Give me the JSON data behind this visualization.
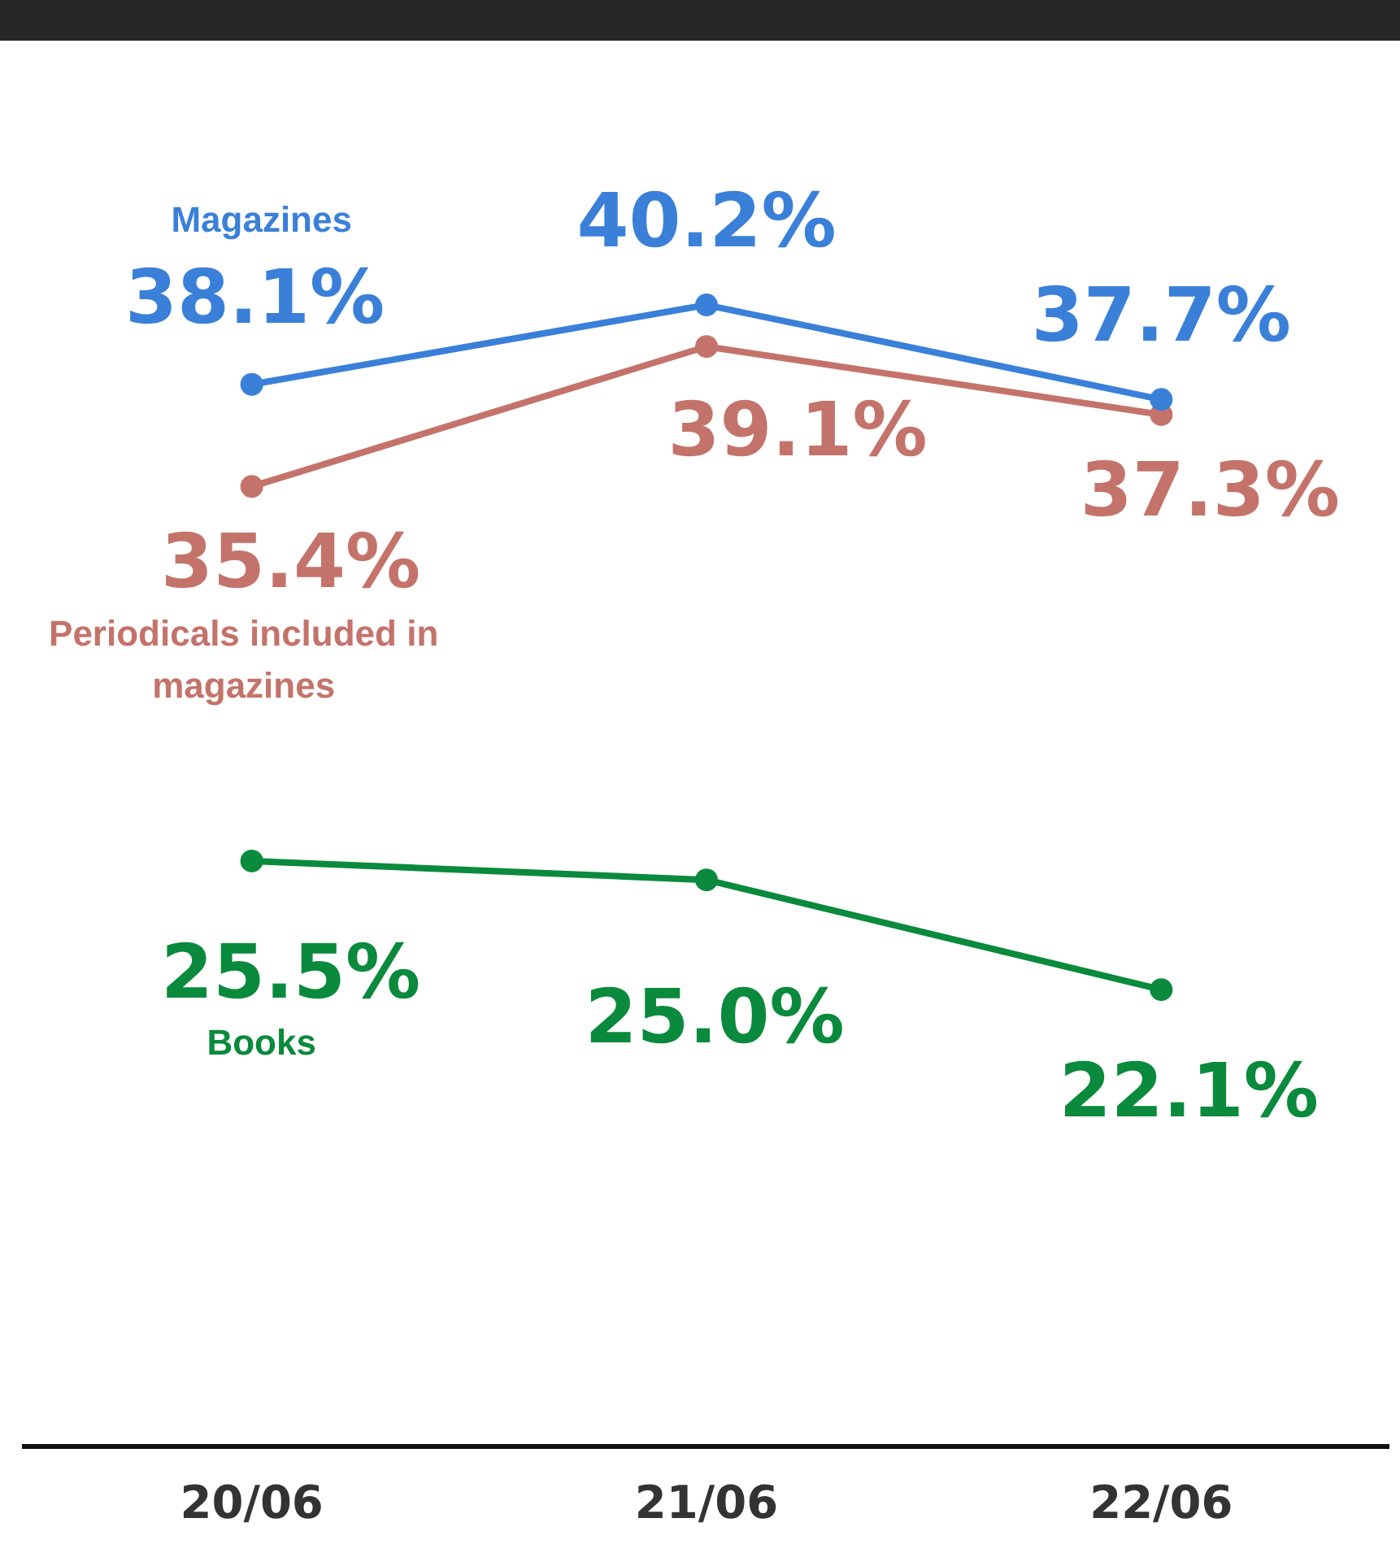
{
  "chart_data": {
    "type": "line",
    "categories": [
      "20/06",
      "21/06",
      "22/06"
    ],
    "series": [
      {
        "name": "Magazines",
        "color": "#3a80d9",
        "values": [
          38.1,
          40.2,
          37.7
        ],
        "value_labels": [
          "38.1%",
          "40.2%",
          "37.7%"
        ]
      },
      {
        "name": "Periodicals included in magazines",
        "color": "#c4736b",
        "values": [
          35.4,
          39.1,
          37.3
        ],
        "value_labels": [
          "35.4%",
          "39.1%",
          "37.3%"
        ]
      },
      {
        "name": "Books",
        "color": "#0a8a3c",
        "values": [
          25.5,
          25.0,
          22.1
        ],
        "value_labels": [
          "25.5%",
          "25.0%",
          "22.1%"
        ]
      }
    ],
    "legend": false,
    "grid": false,
    "marker": "circle",
    "line_style": "solid",
    "tick_labels": "x"
  }
}
